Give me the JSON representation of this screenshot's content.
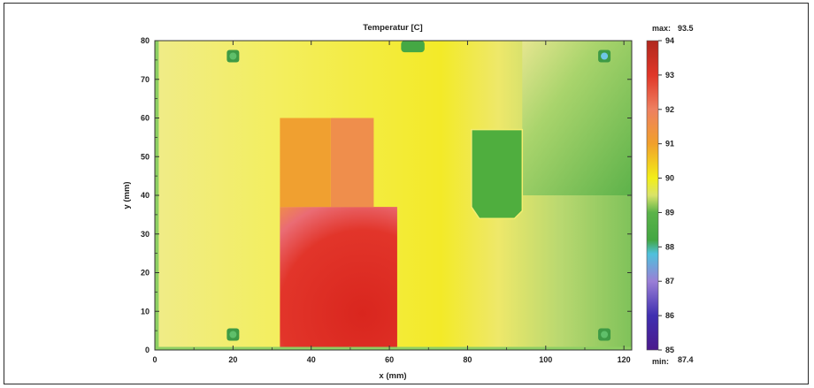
{
  "chart_data": {
    "type": "heatmap",
    "title": "Temperatur [C]",
    "xlabel": "x (mm)",
    "ylabel": "y (mm)",
    "xlim": [
      0,
      122
    ],
    "ylim": [
      0,
      80
    ],
    "x_ticks": [
      0,
      20,
      40,
      60,
      80,
      100,
      120
    ],
    "y_ticks": [
      0,
      10,
      20,
      30,
      40,
      50,
      60,
      70,
      80
    ],
    "colorbar": {
      "range": [
        85,
        94
      ],
      "ticks": [
        85,
        86,
        87,
        88,
        89,
        90,
        91,
        92,
        93,
        94
      ],
      "max_label": "max:",
      "max_value": "93.5",
      "min_label": "min:",
      "min_value": "87.4",
      "stops": [
        {
          "value": 85,
          "color": "#4b1a8c"
        },
        {
          "value": 86,
          "color": "#3f2fb0"
        },
        {
          "value": 87,
          "color": "#9a7fd6"
        },
        {
          "value": 87.8,
          "color": "#4fc1dc"
        },
        {
          "value": 88.2,
          "color": "#43a642"
        },
        {
          "value": 89,
          "color": "#5bb34a"
        },
        {
          "value": 89.5,
          "color": "#d9e36a"
        },
        {
          "value": 90,
          "color": "#f2ee18"
        },
        {
          "value": 91,
          "color": "#f1a02c"
        },
        {
          "value": 92,
          "color": "#ee8060"
        },
        {
          "value": 93,
          "color": "#e03628"
        },
        {
          "value": 94,
          "color": "#b0281e"
        }
      ]
    },
    "regions": [
      {
        "name": "left-board",
        "x": [
          0,
          31
        ],
        "y": [
          0,
          80
        ],
        "temperature": 89.8
      },
      {
        "name": "component-orange-left",
        "x": [
          32,
          45
        ],
        "y": [
          37,
          60
        ],
        "temperature": 91.0
      },
      {
        "name": "component-orange-right",
        "x": [
          45,
          56
        ],
        "y": [
          37,
          60
        ],
        "temperature": 91.4
      },
      {
        "name": "hot-zone",
        "x": [
          32,
          60
        ],
        "y": [
          0,
          37
        ],
        "temperature": 93.2
      },
      {
        "name": "green-component",
        "x": [
          81,
          96
        ],
        "y": [
          34,
          57
        ],
        "temperature": 88.8
      },
      {
        "name": "upper-right-cool",
        "x": [
          94,
          122
        ],
        "y": [
          40,
          80
        ],
        "temperature": 88.9
      }
    ],
    "markers": [
      {
        "name": "mount-top-left",
        "x": 20,
        "y": 76,
        "temperature": 88.5
      },
      {
        "name": "mount-bottom-left",
        "x": 20,
        "y": 4,
        "temperature": 88.4
      },
      {
        "name": "mount-top-right",
        "x": 115,
        "y": 76,
        "temperature": 87.8
      },
      {
        "name": "mount-bottom-right",
        "x": 115,
        "y": 4,
        "temperature": 88.4
      },
      {
        "name": "connector-top",
        "x": 66,
        "y": 78,
        "temperature": 88.6
      }
    ]
  }
}
